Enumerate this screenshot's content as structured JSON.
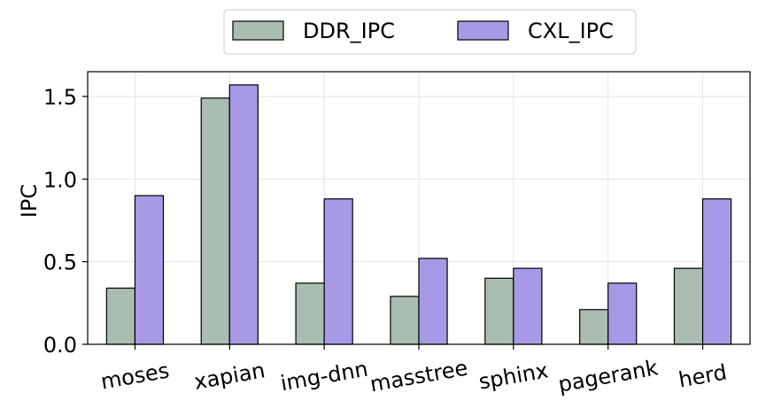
{
  "chart_data": {
    "type": "bar",
    "categories": [
      "moses",
      "xapian",
      "img-dnn",
      "masstree",
      "sphinx",
      "pagerank",
      "herd"
    ],
    "series": [
      {
        "name": "DDR_IPC",
        "values": [
          0.34,
          1.49,
          0.37,
          0.29,
          0.4,
          0.21,
          0.46
        ],
        "color": "#a9bdb0"
      },
      {
        "name": "CXL_IPC",
        "values": [
          0.9,
          1.57,
          0.88,
          0.52,
          0.46,
          0.37,
          0.88
        ],
        "color": "#a899e6"
      }
    ],
    "xlabel": "",
    "ylabel": "IPC",
    "ylim": [
      0,
      1.65
    ],
    "yticks": [
      "0.0",
      "0.5",
      "1.0",
      "1.5"
    ],
    "grid": true,
    "legend_position": "top-center"
  }
}
